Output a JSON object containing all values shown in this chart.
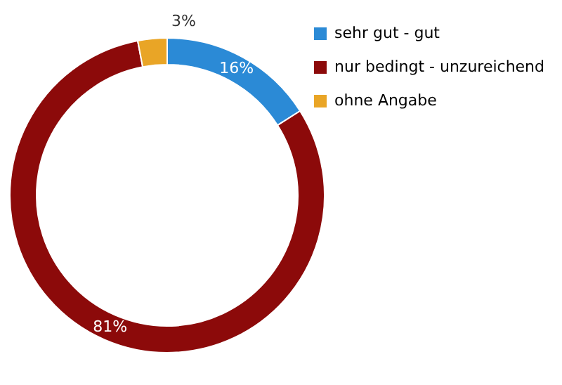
{
  "chart_data": {
    "type": "donut",
    "categories": [
      "sehr gut - gut",
      "nur bedingt - unzureichend",
      "ohne Angabe"
    ],
    "values": [
      16,
      81,
      3
    ],
    "colors": [
      "#2b8ad6",
      "#8c0a0a",
      "#e9a526"
    ],
    "value_labels": [
      "16%",
      "81%",
      "3%"
    ],
    "legend": "top right"
  }
}
